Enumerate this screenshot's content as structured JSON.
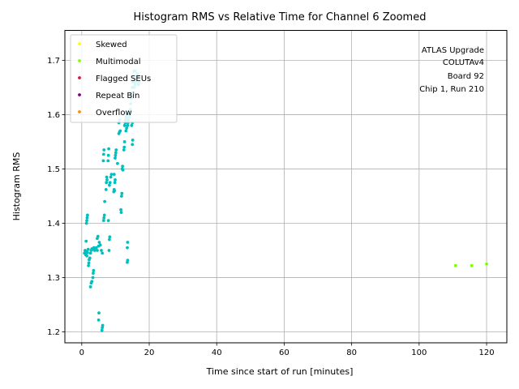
{
  "chart_data": {
    "type": "scatter",
    "title": "Histogram RMS vs Relative Time for Channel 6 Zoomed",
    "xlabel": "Time since start of run [minutes]",
    "ylabel": "Histogram RMS",
    "xlim": [
      -5,
      126
    ],
    "ylim": [
      1.18,
      1.755
    ],
    "xticks": [
      0,
      20,
      40,
      60,
      80,
      100,
      120
    ],
    "xtick_labels": [
      "0",
      "20",
      "40",
      "60",
      "80",
      "100",
      "120"
    ],
    "yticks": [
      1.2,
      1.3,
      1.4,
      1.5,
      1.6,
      1.7
    ],
    "ytick_labels": [
      "1.2",
      "1.3",
      "1.4",
      "1.5",
      "1.6",
      "1.7"
    ],
    "grid": true,
    "legend_position": "top-left",
    "annotation": [
      "ATLAS Upgrade",
      "COLUTAv4",
      "Board 92",
      "Chip 1, Run 210"
    ],
    "series": [
      {
        "name": "Skewed",
        "color": "#ffff00",
        "points": []
      },
      {
        "name": "Multimodal",
        "color": "#7fff00",
        "points": [
          [
            110.8,
            1.322
          ],
          [
            115.6,
            1.322
          ],
          [
            120.0,
            1.325
          ]
        ]
      },
      {
        "name": "Flagged SEUs",
        "color": "#dc143c",
        "points": []
      },
      {
        "name": "Repeat Bin",
        "color": "#800080",
        "points": []
      },
      {
        "name": "Overflow",
        "color": "#ff8c00",
        "points": []
      },
      {
        "name": "",
        "color": "#00bfbf",
        "points": [
          [
            0.8,
            1.345
          ],
          [
            1.0,
            1.35
          ],
          [
            1.2,
            1.342
          ],
          [
            1.4,
            1.348
          ],
          [
            1.5,
            1.34
          ],
          [
            1.7,
            1.346
          ],
          [
            1.9,
            1.352
          ],
          [
            1.3,
            1.367
          ],
          [
            1.4,
            1.4
          ],
          [
            1.5,
            1.405
          ],
          [
            1.6,
            1.41
          ],
          [
            1.7,
            1.415
          ],
          [
            2.0,
            1.322
          ],
          [
            2.1,
            1.327
          ],
          [
            2.2,
            1.333
          ],
          [
            2.4,
            1.336
          ],
          [
            2.6,
            1.345
          ],
          [
            2.8,
            1.35
          ],
          [
            3.0,
            1.353
          ],
          [
            2.6,
            1.283
          ],
          [
            2.8,
            1.29
          ],
          [
            3.0,
            1.293
          ],
          [
            3.3,
            1.3
          ],
          [
            3.4,
            1.308
          ],
          [
            3.5,
            1.313
          ],
          [
            3.2,
            1.352
          ],
          [
            3.6,
            1.355
          ],
          [
            3.8,
            1.35
          ],
          [
            4.0,
            1.352
          ],
          [
            4.3,
            1.355
          ],
          [
            4.6,
            1.35
          ],
          [
            5.0,
            1.358
          ],
          [
            4.6,
            1.372
          ],
          [
            4.8,
            1.376
          ],
          [
            5.2,
            1.365
          ],
          [
            5.5,
            1.36
          ],
          [
            5.8,
            1.35
          ],
          [
            6.1,
            1.345
          ],
          [
            5.0,
            1.222
          ],
          [
            5.1,
            1.235
          ],
          [
            6.0,
            1.203
          ],
          [
            6.1,
            1.208
          ],
          [
            6.2,
            1.212
          ],
          [
            6.5,
            1.405
          ],
          [
            6.6,
            1.41
          ],
          [
            6.7,
            1.415
          ],
          [
            6.8,
            1.44
          ],
          [
            6.4,
            1.515
          ],
          [
            6.5,
            1.527
          ],
          [
            6.6,
            1.535
          ],
          [
            7.2,
            1.462
          ],
          [
            7.3,
            1.475
          ],
          [
            7.4,
            1.485
          ],
          [
            7.5,
            1.48
          ],
          [
            7.8,
            1.515
          ],
          [
            7.9,
            1.525
          ],
          [
            8.0,
            1.537
          ],
          [
            7.9,
            1.405
          ],
          [
            8.1,
            1.35
          ],
          [
            8.2,
            1.37
          ],
          [
            8.3,
            1.375
          ],
          [
            8.2,
            1.47
          ],
          [
            8.4,
            1.475
          ],
          [
            8.6,
            1.485
          ],
          [
            8.8,
            1.49
          ],
          [
            9.5,
            1.458
          ],
          [
            9.6,
            1.462
          ],
          [
            9.7,
            1.46
          ],
          [
            9.8,
            1.475
          ],
          [
            9.9,
            1.48
          ],
          [
            9.6,
            1.49
          ],
          [
            9.9,
            1.52
          ],
          [
            10.0,
            1.525
          ],
          [
            10.1,
            1.53
          ],
          [
            10.2,
            1.535
          ],
          [
            10.6,
            1.51
          ],
          [
            11.0,
            1.565
          ],
          [
            11.2,
            1.568
          ],
          [
            11.4,
            1.57
          ],
          [
            11.0,
            1.585
          ],
          [
            11.2,
            1.59
          ],
          [
            11.8,
            1.45
          ],
          [
            11.9,
            1.455
          ],
          [
            11.6,
            1.425
          ],
          [
            11.7,
            1.42
          ],
          [
            12.0,
            1.5
          ],
          [
            12.1,
            1.505
          ],
          [
            12.2,
            1.498
          ],
          [
            12.5,
            1.535
          ],
          [
            12.6,
            1.54
          ],
          [
            12.7,
            1.55
          ],
          [
            12.7,
            1.58
          ],
          [
            12.9,
            1.585
          ],
          [
            13.0,
            1.59
          ],
          [
            13.2,
            1.595
          ],
          [
            13.3,
            1.6
          ],
          [
            13.4,
            1.605
          ],
          [
            13.6,
            1.58
          ],
          [
            13.7,
            1.585
          ],
          [
            13.8,
            1.59
          ],
          [
            14.0,
            1.595
          ],
          [
            14.2,
            1.6
          ],
          [
            14.4,
            1.61
          ],
          [
            13.5,
            1.355
          ],
          [
            13.6,
            1.365
          ],
          [
            13.5,
            1.328
          ],
          [
            13.6,
            1.332
          ],
          [
            14.8,
            1.58
          ],
          [
            15.0,
            1.585
          ],
          [
            15.0,
            1.545
          ],
          [
            15.1,
            1.553
          ],
          [
            13.1,
            1.57
          ],
          [
            13.3,
            1.575
          ],
          [
            14.5,
            1.62
          ],
          [
            14.7,
            1.63
          ],
          [
            14.9,
            1.64
          ],
          [
            15.0,
            1.65
          ],
          [
            15.2,
            1.66
          ],
          [
            15.3,
            1.67
          ],
          [
            15.5,
            1.68
          ],
          [
            15.6,
            1.65
          ],
          [
            15.8,
            1.655
          ],
          [
            16.0,
            1.66
          ],
          [
            16.2,
            1.665
          ],
          [
            16.4,
            1.67
          ],
          [
            16.5,
            1.675
          ],
          [
            16.8,
            1.655
          ],
          [
            17.0,
            1.66
          ],
          [
            15.4,
            1.64
          ],
          [
            14.8,
            1.635
          ],
          [
            15.9,
            1.68
          ]
        ]
      }
    ]
  }
}
